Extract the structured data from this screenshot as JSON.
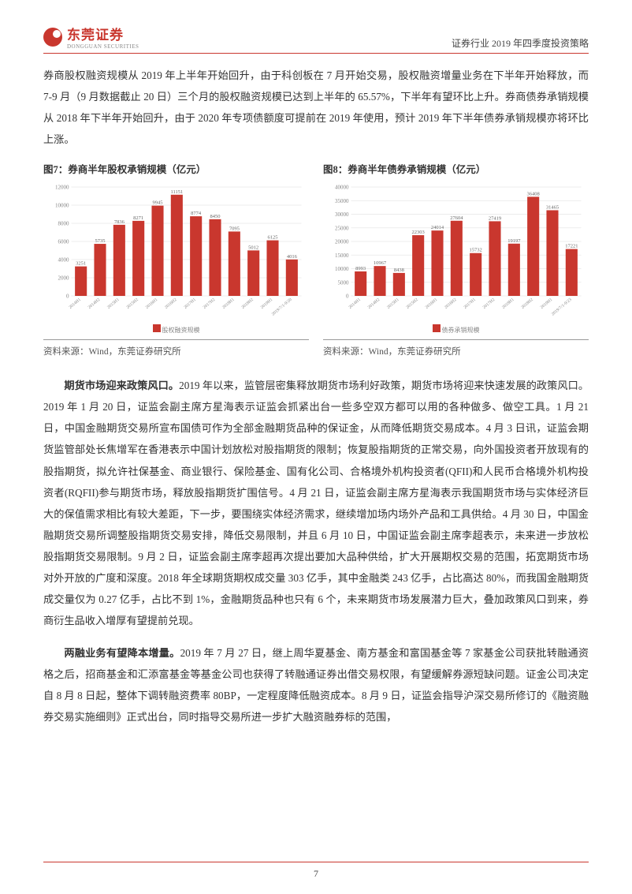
{
  "header": {
    "brand_cn": "东莞证券",
    "brand_en": "DONGGUAN SECURITIES",
    "right": "证券行业 2019 年四季度投资策略"
  },
  "para1": "券商股权融资规模从 2019 年上半年开始回升，由于科创板在 7 月开始交易，股权融资增量业务在下半年开始释放，而 7-9 月（9 月数据截止 20 日）三个月的股权融资规模已达到上半年的 65.57%，下半年有望环比上升。券商债券承销规模从 2018 年下半年开始回升，由于 2020 年专项债额度可提前在 2019 年使用，预计 2019 年下半年债券承销规模亦将环比上涨。",
  "chart7": {
    "title": "图7：券商半年股权承销规模（亿元）",
    "type": "bar",
    "categories": [
      "2014H1",
      "2014H2",
      "2015H1",
      "2015H2",
      "2016H1",
      "2016H2",
      "2017H1",
      "2017H2",
      "2018H1",
      "2018H2",
      "2019H1",
      "2019/7/1-9/20"
    ],
    "values": [
      3251,
      5735,
      7836,
      8271,
      9945,
      11151,
      8774,
      8450,
      7095,
      5012,
      6125,
      4016
    ],
    "ylim": [
      0,
      12000
    ],
    "ytick_step": 2000,
    "bar_color": "#c9372e",
    "grid_color": "#e6e6e6",
    "background_color": "#ffffff",
    "legend": "股权融资规模",
    "source": "资料来源：Wind，东莞证券研究所"
  },
  "chart8": {
    "title": "图8：券商半年债券承销规模（亿元）",
    "type": "bar",
    "categories": [
      "2014H1",
      "2014H2",
      "2015H1",
      "2015H2",
      "2016H1",
      "2016H2",
      "2017H1",
      "2017H2",
      "2018H1",
      "2018H2",
      "2019H1",
      "2019/7/1-9/23"
    ],
    "values": [
      8993,
      10967,
      8438,
      22303,
      24014,
      27604,
      15732,
      27419,
      19197,
      36408,
      31465,
      17221
    ],
    "ylim": [
      0,
      40000
    ],
    "ytick_step": 5000,
    "bar_color": "#c9372e",
    "grid_color": "#e6e6e6",
    "background_color": "#ffffff",
    "legend": "债券承销规模",
    "source": "资料来源：Wind，东莞证券研究所"
  },
  "para2_lead": "期货市场迎来政策风口。",
  "para2_body": "2019 年以来，监管层密集释放期货市场利好政策，期货市场将迎来快速发展的政策风口。2019 年 1 月 20 日，证监会副主席方星海表示证监会抓紧出台一些多空双方都可以用的各种做多、做空工具。1 月 21 日，中国金融期货交易所宣布国债可作为全部金融期货品种的保证金，从而降低期货交易成本。4 月 3 日讯，证监会期货监管部处长焦增军在香港表示中国计划放松对股指期货的限制；恢复股指期货的正常交易，向外国投资者开放现有的股指期货，拟允许社保基金、商业银行、保险基金、国有化公司、合格境外机构投资者(QFII)和人民币合格境外机构投资者(RQFII)参与期货市场，释放股指期货扩围信号。4 月 21 日，证监会副主席方星海表示我国期货市场与实体经济巨大的保值需求相比有较大差距，下一步，要围绕实体经济需求，继续增加场内场外产品和工具供给。4 月 30 日，中国金融期货交易所调整股指期货交易安排，降低交易限制，并且 6 月 10 日，中国证监会副主席李超表示，未来进一步放松股指期货交易限制。9 月 2 日，证监会副主席李超再次提出要加大品种供给，扩大开展期权交易的范围，拓宽期货市场对外开放的广度和深度。2018 年全球期货期权成交量 303 亿手，其中金融类 243 亿手，占比高达 80%，而我国金融期货成交量仅为 0.27 亿手，占比不到 1%，金融期货品种也只有 6 个，未来期货市场发展潜力巨大，叠加政策风口到来，券商衍生品收入增厚有望提前兑现。",
  "para3_lead": "两融业务有望降本增量。",
  "para3_body": "2019 年 7 月 27 日，继上周华夏基金、南方基金和富国基金等 7 家基金公司获批转融通资格之后，招商基金和汇添富基金等基金公司也获得了转融通证券出借交易权限，有望缓解券源短缺问题。证金公司决定自 8 月 8 日起，整体下调转融资费率 80BP，一定程度降低融资成本。8 月 9 日，证监会指导沪深交易所修订的《融资融券交易实施细则》正式出台，同时指导交易所进一步扩大融资融券标的范围，",
  "page_num": "7"
}
